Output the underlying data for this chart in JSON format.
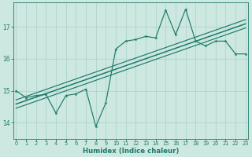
{
  "xlabel": "Humidex (Indice chaleur)",
  "background_color": "#cce8e0",
  "line_color": "#1e7a6a",
  "grid_color": "#afd4cc",
  "x_values": [
    0,
    1,
    2,
    3,
    4,
    5,
    6,
    7,
    8,
    9,
    10,
    11,
    12,
    13,
    14,
    15,
    16,
    17,
    18,
    19,
    20,
    21,
    22,
    23
  ],
  "y_main": [
    15.0,
    14.78,
    14.85,
    14.88,
    14.3,
    14.85,
    14.9,
    15.05,
    13.88,
    14.62,
    16.3,
    16.55,
    16.6,
    16.7,
    16.65,
    17.52,
    16.75,
    17.55,
    16.55,
    16.4,
    16.55,
    16.55,
    16.15,
    16.15
  ],
  "ylim": [
    13.5,
    17.75
  ],
  "xlim": [
    -0.3,
    23.3
  ],
  "yticks": [
    14,
    15,
    16,
    17
  ],
  "xticks": [
    0,
    1,
    2,
    3,
    4,
    5,
    6,
    7,
    8,
    9,
    10,
    11,
    12,
    13,
    14,
    15,
    16,
    17,
    18,
    19,
    20,
    21,
    22,
    23
  ],
  "trend_offsets": [
    0.0,
    0.13,
    -0.13
  ],
  "trend_lw": [
    1.1,
    0.85,
    0.85
  ]
}
